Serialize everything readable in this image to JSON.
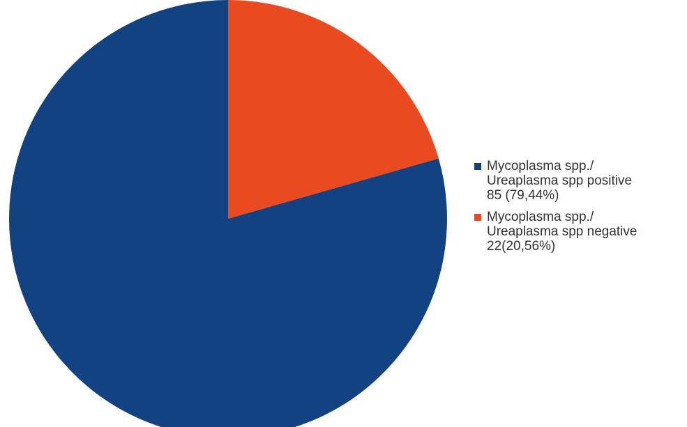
{
  "chart_data": {
    "type": "pie",
    "title": "",
    "start_angle_deg": 0,
    "direction": "clockwise",
    "series": [
      {
        "name": "Mycoplasma spp./ Ureaplasma spp positive",
        "value": 85,
        "percent": 79.44,
        "color": "#134283",
        "legend_lines": [
          "Mycoplasma spp./",
          "Ureaplasma spp positive",
          "85 (79,44%)"
        ]
      },
      {
        "name": "Mycoplasma spp./ Ureaplasma spp negative",
        "value": 22,
        "percent": 20.56,
        "color": "#ea4a20",
        "legend_lines": [
          "Mycoplasma spp./",
          "Ureaplasma spp negative",
          "22(20,56%)"
        ]
      }
    ],
    "legend": {
      "placement": "right"
    }
  }
}
